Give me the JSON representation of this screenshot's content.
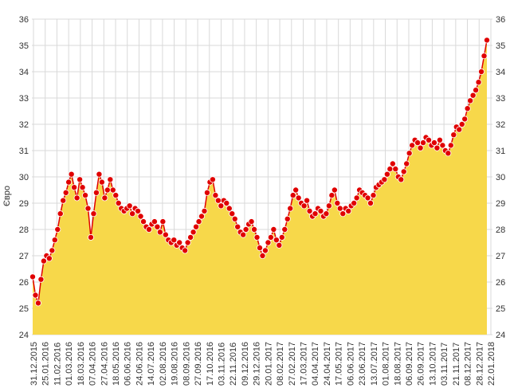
{
  "chart_data": {
    "type": "area",
    "ylabel": "Євро",
    "ylim": [
      24,
      36
    ],
    "y_ticks": [
      24,
      25,
      26,
      27,
      28,
      29,
      30,
      31,
      32,
      33,
      34,
      35,
      36
    ],
    "x_ticks": [
      "31.12.2015",
      "25.01.2016",
      "11.02.2016",
      "01.03.2016",
      "18.03.2016",
      "07.04.2016",
      "27.04.2016",
      "18.05.2016",
      "06.06.2016",
      "24.06.2016",
      "14.07.2016",
      "02.08.2016",
      "19.08.2016",
      "08.09.2016",
      "27.09.2016",
      "17.10.2016",
      "03.11.2016",
      "22.11.2016",
      "09.12.2016",
      "29.12.2016",
      "20.01.2017",
      "08.02.2017",
      "27.02.2017",
      "17.03.2017",
      "04.04.2017",
      "24.04.2017",
      "17.05.2017",
      "06.06.2017",
      "23.06.2017",
      "13.07.2017",
      "01.08.2017",
      "18.08.2017",
      "06.09.2017",
      "26.09.2017",
      "13.10.2017",
      "03.11.2017",
      "21.11.2017",
      "08.12.2017",
      "28.12.2017",
      "22.01.2018"
    ],
    "grid": true,
    "legend": "none",
    "area_color": "#F7D84A",
    "line_color": "#E00000",
    "marker_color": "#E00000",
    "series": [
      {
        "values": [
          26.2,
          25.5,
          25.2,
          26.1,
          26.8,
          27.0,
          26.9,
          27.2,
          27.6,
          28.0,
          28.6,
          29.1,
          29.4,
          29.8,
          30.1,
          29.6,
          29.2,
          29.9,
          29.6,
          29.3,
          28.8,
          27.7,
          28.6,
          29.4,
          30.1,
          29.8,
          29.2,
          29.5,
          29.9,
          29.5,
          29.3,
          29.0,
          28.8,
          28.7,
          28.8,
          28.9,
          28.6,
          28.8,
          28.7,
          28.5,
          28.3,
          28.1,
          28.0,
          28.2,
          28.3,
          28.1,
          27.9,
          28.3,
          27.8,
          27.6,
          27.5,
          27.6,
          27.4,
          27.5,
          27.3,
          27.2,
          27.5,
          27.7,
          27.9,
          28.1,
          28.3,
          28.5,
          28.7,
          29.4,
          29.8,
          29.9,
          29.3,
          29.1,
          28.9,
          29.1,
          29.0,
          28.8,
          28.6,
          28.4,
          28.1,
          27.9,
          27.8,
          28.0,
          28.2,
          28.3,
          28.0,
          27.7,
          27.3,
          27.0,
          27.2,
          27.5,
          27.7,
          28.0,
          27.6,
          27.4,
          27.7,
          28.0,
          28.4,
          28.8,
          29.3,
          29.5,
          29.2,
          29.0,
          28.9,
          29.1,
          28.7,
          28.5,
          28.6,
          28.8,
          28.7,
          28.5,
          28.6,
          28.9,
          29.3,
          29.5,
          29.0,
          28.8,
          28.6,
          28.8,
          28.7,
          28.9,
          29.0,
          29.2,
          29.5,
          29.4,
          29.3,
          29.2,
          29.0,
          29.3,
          29.6,
          29.7,
          29.8,
          29.9,
          30.1,
          30.3,
          30.5,
          30.3,
          30.0,
          29.9,
          30.2,
          30.5,
          30.9,
          31.2,
          31.4,
          31.3,
          31.1,
          31.3,
          31.5,
          31.4,
          31.2,
          31.3,
          31.1,
          31.4,
          31.2,
          31.0,
          30.9,
          31.2,
          31.6,
          31.9,
          31.8,
          32.0,
          32.2,
          32.6,
          32.9,
          33.1,
          33.3,
          33.6,
          34.0,
          34.6,
          35.2
        ]
      }
    ]
  }
}
